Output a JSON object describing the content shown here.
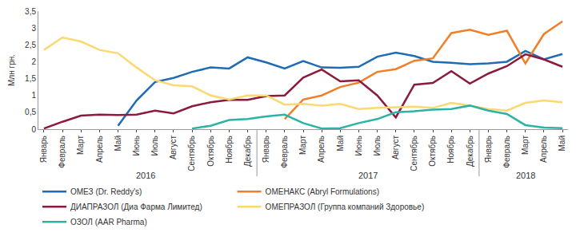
{
  "chart_data": {
    "type": "line",
    "y_label": "Млн грн.",
    "categories": [
      "Январь",
      "Февраль",
      "Март",
      "Апрель",
      "Май",
      "Июнь",
      "Июль",
      "Август",
      "Сентябрь",
      "Октябрь",
      "Ноябрь",
      "Декабрь",
      "Январь",
      "Февраль",
      "Март",
      "Апрель",
      "Май",
      "Июнь",
      "Июль",
      "Август",
      "Сентябрь",
      "Октябрь",
      "Ноябрь",
      "Декабрь",
      "Январь",
      "Февраль",
      "Март",
      "Апрель",
      "Май"
    ],
    "year_groups": [
      {
        "label": "2016",
        "count": 12
      },
      {
        "label": "2017",
        "count": 12
      },
      {
        "label": "2018",
        "count": 5
      }
    ],
    "series": [
      {
        "name": "ОМЕЗ (Dr. Reddy's)",
        "color": "#1f6cb4",
        "values": [
          null,
          null,
          null,
          null,
          0.1,
          0.85,
          1.4,
          1.52,
          1.7,
          1.83,
          1.8,
          2.13,
          1.98,
          1.8,
          2.02,
          1.83,
          1.82,
          1.85,
          2.15,
          2.27,
          2.17,
          2.0,
          1.97,
          1.93,
          1.95,
          2.0,
          2.32,
          2.07,
          2.23
        ]
      },
      {
        "name": "ОМЕНАКС (Abryl Formulations)",
        "color": "#f07f2a",
        "values": [
          null,
          null,
          null,
          null,
          null,
          null,
          null,
          null,
          null,
          null,
          null,
          null,
          null,
          0.3,
          0.88,
          1.0,
          1.25,
          1.38,
          1.7,
          1.78,
          2.03,
          2.1,
          2.85,
          2.95,
          2.8,
          2.92,
          1.95,
          2.82,
          3.2
        ]
      },
      {
        "name": "ДИАПРАЗОЛ (Диа Фарма Лимитед)",
        "color": "#8b1a3c",
        "values": [
          0.02,
          0.22,
          0.4,
          0.43,
          0.42,
          0.43,
          0.55,
          0.47,
          0.68,
          0.8,
          0.87,
          0.87,
          0.98,
          1.0,
          1.53,
          1.77,
          1.42,
          1.45,
          1.0,
          0.35,
          1.32,
          1.37,
          1.72,
          1.35,
          1.65,
          1.87,
          2.22,
          2.07,
          1.85
        ]
      },
      {
        "name": "ОМЕПРАЗОЛ (Группа компаний Здоровье)",
        "color": "#fbd870",
        "values": [
          2.35,
          2.72,
          2.6,
          2.35,
          2.25,
          1.83,
          1.45,
          1.3,
          1.27,
          1.0,
          0.88,
          1.0,
          1.0,
          0.73,
          0.75,
          0.7,
          0.75,
          0.6,
          0.63,
          0.65,
          0.67,
          0.63,
          0.78,
          0.7,
          0.6,
          0.55,
          0.78,
          0.85,
          0.8
        ]
      },
      {
        "name": "ОЗОЛ (AAR Pharma)",
        "color": "#2bb3a3",
        "values": [
          null,
          null,
          null,
          null,
          null,
          null,
          null,
          null,
          0.02,
          0.1,
          0.27,
          0.3,
          0.38,
          0.43,
          0.18,
          0.02,
          0.03,
          0.18,
          0.3,
          0.5,
          0.53,
          0.58,
          0.6,
          0.7,
          0.55,
          0.45,
          0.12,
          0.05,
          0.03
        ]
      }
    ],
    "ylim": [
      0,
      3.5
    ],
    "yticks": [
      0,
      {
        "value": 0.5,
        "label": "0,5"
      },
      1,
      {
        "value": 1.5,
        "label": "1,5"
      },
      2,
      {
        "value": 2.5,
        "label": "2,5"
      },
      3,
      {
        "value": 3.5,
        "label": "3,5"
      }
    ],
    "grid": false,
    "legend": "bottom"
  }
}
